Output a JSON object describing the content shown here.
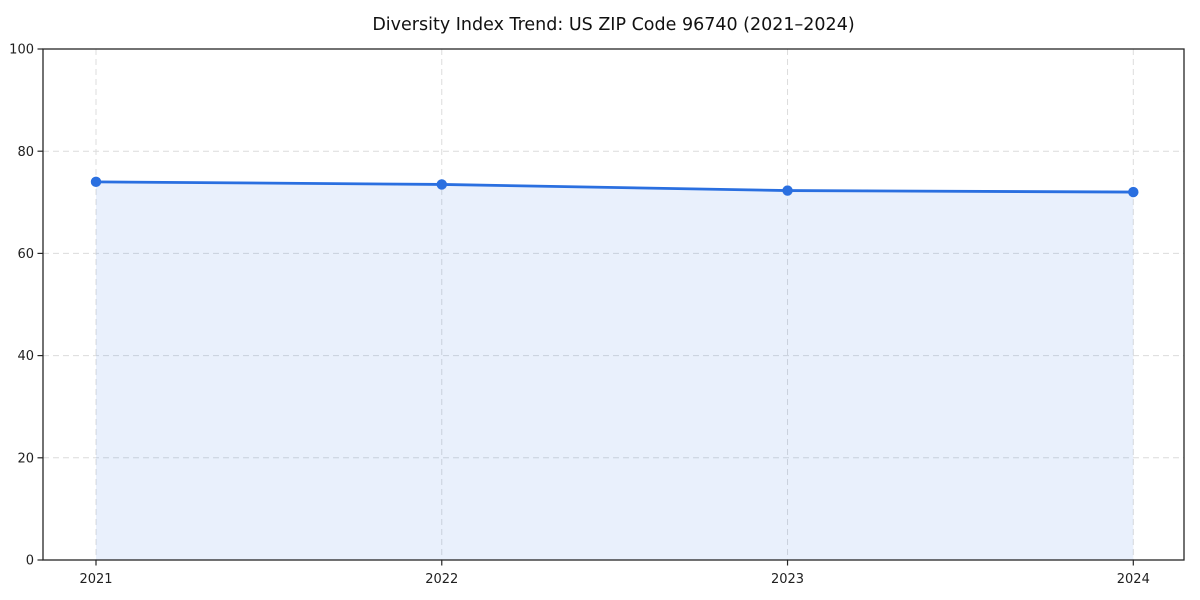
{
  "chart_data": {
    "type": "line",
    "title": "Diversity Index Trend: US ZIP Code 96740 (2021–2024)",
    "categories": [
      "2021",
      "2022",
      "2023",
      "2024"
    ],
    "series": [
      {
        "name": "Diversity Index",
        "values": [
          74.0,
          73.5,
          72.3,
          72.0
        ]
      }
    ],
    "xlabel": "",
    "ylabel": "",
    "ylim": [
      0,
      100
    ],
    "yticks": [
      0,
      20,
      40,
      60,
      80,
      100
    ],
    "grid": true,
    "grid_style": "dashed",
    "legend_position": "none",
    "area_fill": true,
    "markers": true,
    "colors": {
      "line": "#2a6fe0",
      "marker": "#2a6fe0",
      "area_fill": "#2a6fe0",
      "area_fill_opacity": 0.1,
      "grid": "#dcdcdc",
      "spine": "#262626",
      "title_text": "#111111",
      "tick_text": "#1f1f1f",
      "background": "#ffffff"
    }
  }
}
